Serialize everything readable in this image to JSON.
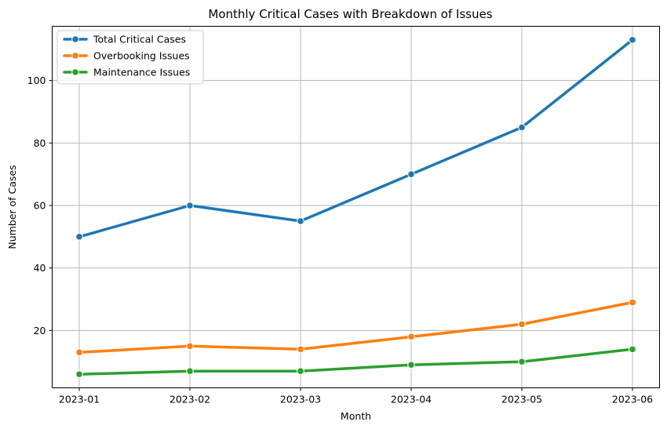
{
  "chart_data": {
    "type": "line",
    "title": "Monthly Critical Cases with Breakdown of Issues",
    "xlabel": "Month",
    "ylabel": "Number of Cases",
    "categories": [
      "2023-01",
      "2023-02",
      "2023-03",
      "2023-04",
      "2023-05",
      "2023-06"
    ],
    "yticks": [
      20,
      40,
      60,
      80,
      100
    ],
    "ylim": [
      1.65,
      117.35
    ],
    "grid": true,
    "legend_position": "top-left",
    "series": [
      {
        "name": "Total Critical Cases",
        "color": "#1f77b4",
        "values": [
          50,
          60,
          55,
          70,
          85,
          113
        ]
      },
      {
        "name": "Overbooking Issues",
        "color": "#ff7f0e",
        "values": [
          13,
          15,
          14,
          18,
          22,
          29
        ]
      },
      {
        "name": "Maintenance Issues",
        "color": "#2ca02c",
        "values": [
          6,
          7,
          7,
          9,
          10,
          14
        ]
      }
    ]
  }
}
